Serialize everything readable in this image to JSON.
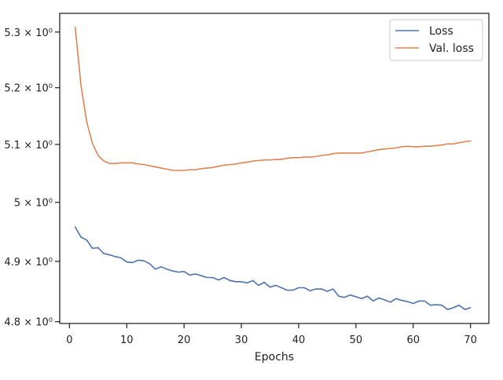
{
  "chart_data": {
    "type": "line",
    "xlabel": "Epochs",
    "ylabel": "",
    "y_scale": "log",
    "x_ticks": [
      0,
      10,
      20,
      30,
      40,
      50,
      60,
      70
    ],
    "x_tick_labels": [
      "0",
      "10",
      "20",
      "30",
      "40",
      "50",
      "60",
      "70"
    ],
    "y_ticks": [
      4.8,
      4.9,
      5.0,
      5.1,
      5.2,
      5.3
    ],
    "y_tick_labels": [
      "4.8 × 10⁰",
      "4.9 × 10⁰",
      "5 × 10⁰",
      "5.1 × 10⁰",
      "5.2 × 10⁰",
      "5.3 × 10⁰"
    ],
    "xlim": [
      -1.7,
      73.2
    ],
    "ylim": [
      4.797,
      5.334
    ],
    "legend_position": "top-right",
    "grid": false,
    "series": [
      {
        "name": "Loss",
        "color": "#4c72b0",
        "x": [
          1,
          2,
          3,
          4,
          5,
          6,
          7,
          8,
          9,
          10,
          11,
          12,
          13,
          14,
          15,
          16,
          17,
          18,
          19,
          20,
          21,
          22,
          23,
          24,
          25,
          26,
          27,
          28,
          29,
          30,
          31,
          32,
          33,
          34,
          35,
          36,
          37,
          38,
          39,
          40,
          41,
          42,
          43,
          44,
          45,
          46,
          47,
          48,
          49,
          50,
          51,
          52,
          53,
          54,
          55,
          56,
          57,
          58,
          59,
          60,
          61,
          62,
          63,
          64,
          65,
          66,
          67,
          68,
          69,
          70
        ],
        "values": [
          4.958,
          4.941,
          4.936,
          4.922,
          4.923,
          4.913,
          4.911,
          4.908,
          4.906,
          4.899,
          4.898,
          4.902,
          4.901,
          4.896,
          4.887,
          4.891,
          4.887,
          4.884,
          4.882,
          4.883,
          4.877,
          4.879,
          4.876,
          4.873,
          4.873,
          4.869,
          4.873,
          4.868,
          4.866,
          4.866,
          4.864,
          4.868,
          4.86,
          4.865,
          4.857,
          4.86,
          4.856,
          4.852,
          4.852,
          4.856,
          4.856,
          4.851,
          4.854,
          4.854,
          4.85,
          4.854,
          4.842,
          4.84,
          4.844,
          4.841,
          4.838,
          4.842,
          4.834,
          4.839,
          4.836,
          4.832,
          4.838,
          4.835,
          4.833,
          4.83,
          4.834,
          4.834,
          4.827,
          4.828,
          4.827,
          4.82,
          4.823,
          4.827,
          4.82,
          4.823
        ]
      },
      {
        "name": "Val. loss",
        "color": "#dd8452",
        "x": [
          1,
          2,
          3,
          4,
          5,
          6,
          7,
          8,
          9,
          10,
          11,
          12,
          13,
          14,
          15,
          16,
          17,
          18,
          19,
          20,
          21,
          22,
          23,
          24,
          25,
          26,
          27,
          28,
          29,
          30,
          31,
          32,
          33,
          34,
          35,
          36,
          37,
          38,
          39,
          40,
          41,
          42,
          43,
          44,
          45,
          46,
          47,
          48,
          49,
          50,
          51,
          52,
          53,
          54,
          55,
          56,
          57,
          58,
          59,
          60,
          61,
          62,
          63,
          64,
          65,
          66,
          67,
          68,
          69,
          70
        ],
        "values": [
          5.309,
          5.205,
          5.14,
          5.102,
          5.081,
          5.071,
          5.067,
          5.067,
          5.068,
          5.068,
          5.068,
          5.066,
          5.065,
          5.063,
          5.061,
          5.059,
          5.057,
          5.055,
          5.055,
          5.055,
          5.056,
          5.056,
          5.058,
          5.059,
          5.06,
          5.062,
          5.064,
          5.065,
          5.066,
          5.068,
          5.069,
          5.071,
          5.072,
          5.073,
          5.073,
          5.074,
          5.074,
          5.076,
          5.077,
          5.077,
          5.078,
          5.078,
          5.079,
          5.081,
          5.082,
          5.084,
          5.085,
          5.085,
          5.085,
          5.085,
          5.085,
          5.087,
          5.089,
          5.091,
          5.092,
          5.093,
          5.094,
          5.096,
          5.097,
          5.096,
          5.096,
          5.097,
          5.097,
          5.098,
          5.099,
          5.101,
          5.101,
          5.103,
          5.105,
          5.106
        ]
      }
    ]
  }
}
